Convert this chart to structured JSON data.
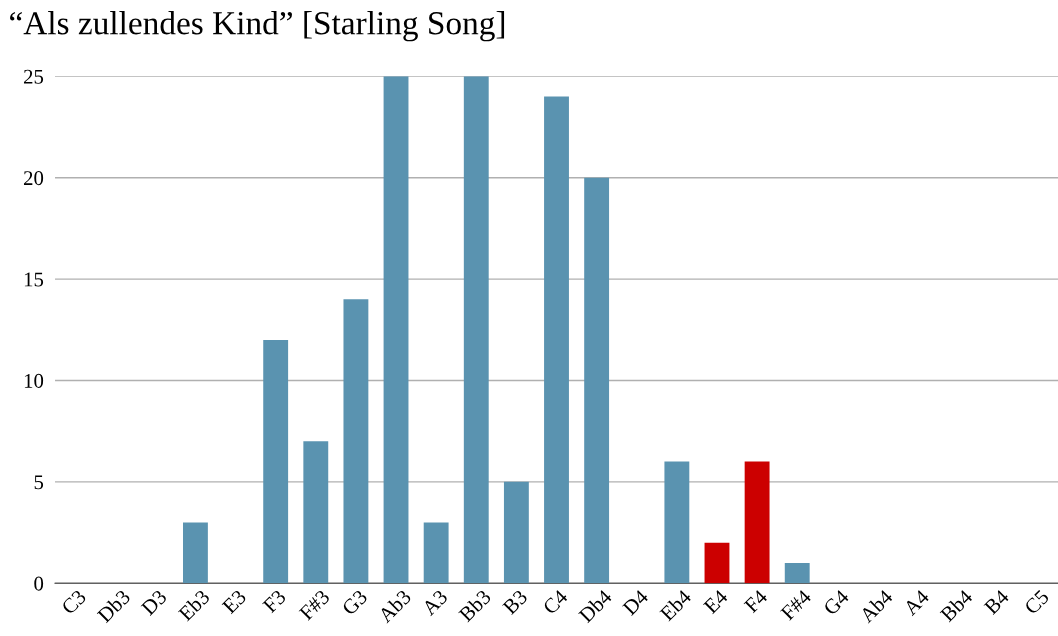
{
  "chart_data": {
    "type": "bar",
    "title": "“Als zullendes Kind” [Starling Song]",
    "categories": [
      "C3",
      "Db3",
      "D3",
      "Eb3",
      "E3",
      "F3",
      "F#3",
      "G3",
      "Ab3",
      "A3",
      "Bb3",
      "B3",
      "C4",
      "Db4",
      "D4",
      "Eb4",
      "E4",
      "F4",
      "F#4",
      "G4",
      "Ab4",
      "A4",
      "Bb4",
      "B4",
      "C5"
    ],
    "values": [
      0,
      0,
      0,
      3,
      0,
      12,
      7,
      14,
      25,
      3,
      25,
      5,
      24,
      20,
      0,
      6,
      2,
      6,
      1,
      0,
      0,
      0,
      0,
      0,
      0
    ],
    "colors": [
      "#5a93b0",
      "#5a93b0",
      "#5a93b0",
      "#5a93b0",
      "#5a93b0",
      "#5a93b0",
      "#5a93b0",
      "#5a93b0",
      "#5a93b0",
      "#5a93b0",
      "#5a93b0",
      "#5a93b0",
      "#5a93b0",
      "#5a93b0",
      "#5a93b0",
      "#5a93b0",
      "#cc0000",
      "#cc0000",
      "#5a93b0",
      "#5a93b0",
      "#5a93b0",
      "#5a93b0",
      "#5a93b0",
      "#5a93b0",
      "#5a93b0"
    ],
    "ylim": [
      0,
      25
    ],
    "yticks": [
      0,
      5,
      10,
      15,
      20,
      25
    ],
    "grid": "y"
  }
}
